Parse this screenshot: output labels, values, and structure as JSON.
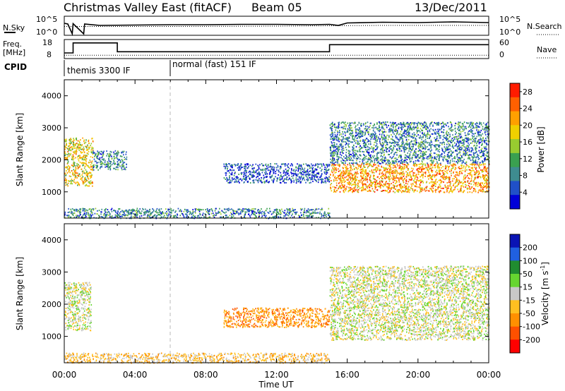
{
  "header": {
    "title": "Christmas Valley East (fitACF)",
    "beam": "Beam 05",
    "date": "13/Dec/2011"
  },
  "chart_data": [
    {
      "type": "line",
      "panel": "noise",
      "left_label": "N.Sky",
      "right_label": "N.Search",
      "left_ticks": [
        "10^5",
        "10^0"
      ],
      "right_ticks": [
        "10^5",
        "10^0"
      ],
      "x_unit": "hours UT",
      "series": [
        {
          "name": "N.Sky",
          "points": [
            [
              0,
              3.2
            ],
            [
              0.2,
              3.0
            ],
            [
              0.45,
              0.2
            ],
            [
              0.5,
              3.1
            ],
            [
              1.1,
              0.2
            ],
            [
              1.15,
              3.0
            ],
            [
              2,
              2.6
            ],
            [
              4,
              2.7
            ],
            [
              6,
              2.8
            ],
            [
              8,
              2.8
            ],
            [
              10,
              2.9
            ],
            [
              12,
              2.9
            ],
            [
              14,
              2.8
            ],
            [
              15,
              2.9
            ],
            [
              15.5,
              2.6
            ],
            [
              16,
              3.3
            ],
            [
              18,
              3.5
            ],
            [
              20,
              3.4
            ],
            [
              22,
              3.6
            ],
            [
              24,
              3.4
            ]
          ]
        },
        {
          "name": "N.Search",
          "points": [
            [
              0,
              2.3
            ],
            [
              6,
              2.3
            ],
            [
              12,
              2.4
            ],
            [
              18,
              2.6
            ],
            [
              24,
              2.6
            ]
          ]
        }
      ]
    },
    {
      "type": "line",
      "panel": "frequency",
      "left_label": "Freq. [MHz]",
      "right_label": "Nave",
      "left_ticks": [
        18,
        8
      ],
      "right_ticks": [
        60,
        0
      ],
      "series": [
        {
          "name": "Freq.",
          "points": [
            [
              0,
              10.8
            ],
            [
              0.5,
              10.8
            ],
            [
              0.5,
              16.5
            ],
            [
              1.5,
              16.5
            ],
            [
              3,
              16.5
            ],
            [
              3,
              11.5
            ],
            [
              15,
              11.5
            ],
            [
              15,
              15.5
            ],
            [
              24,
              15.5
            ]
          ]
        },
        {
          "name": "Nave",
          "points": [
            [
              0,
              9
            ],
            [
              24,
              9
            ]
          ]
        }
      ]
    },
    {
      "type": "table",
      "panel": "cpid",
      "label": "CPID",
      "segments": [
        {
          "start": 0,
          "end": 6,
          "text": "themis 3300 IF"
        },
        {
          "start": 6,
          "end": 24,
          "text": "normal (fast) 151 IF"
        }
      ]
    },
    {
      "type": "heatmap",
      "panel": "power",
      "ylabel": "Slant Range [km]",
      "ylim": [
        180,
        4500
      ],
      "yticks": [
        1000,
        2000,
        3000,
        4000
      ],
      "xlim": [
        0,
        24
      ],
      "colorbar_label": "Power [dB]",
      "colorbar_ticks": [
        4,
        8,
        12,
        16,
        20,
        24,
        28
      ],
      "colorbar_range": [
        0,
        30
      ],
      "colors": [
        "#0000d8",
        "#2050c8",
        "#3e8c90",
        "#3aa050",
        "#98cc30",
        "#f0d000",
        "#ffa000",
        "#ff6000",
        "#ff1c00"
      ],
      "features": [
        {
          "t0": 0,
          "t1": 1.6,
          "r0": 1200,
          "r1": 2700,
          "level": 22
        },
        {
          "t0": 1.6,
          "t1": 3.5,
          "r0": 1700,
          "r1": 2300,
          "level": 8
        },
        {
          "t0": 0,
          "t1": 15,
          "r0": 190,
          "r1": 500,
          "level": 10
        },
        {
          "t0": 9,
          "t1": 15,
          "r0": 1300,
          "r1": 1900,
          "level": 7
        },
        {
          "t0": 15,
          "t1": 24,
          "r0": 1000,
          "r1": 1900,
          "level": 25
        },
        {
          "t0": 15,
          "t1": 24,
          "r0": 1900,
          "r1": 3200,
          "level": 10
        }
      ]
    },
    {
      "type": "heatmap",
      "panel": "velocity",
      "ylabel": "Slant Range [km]",
      "ylim": [
        180,
        4500
      ],
      "yticks": [
        1000,
        2000,
        3000,
        4000
      ],
      "xlim": [
        0,
        24
      ],
      "xticks": [
        "00:00",
        "04:00",
        "08:00",
        "12:00",
        "16:00",
        "20:00",
        "00:00"
      ],
      "xlabel": "Time UT",
      "colorbar_label": "Velocity [m s^-1]",
      "colorbar_ticks": [
        200,
        100,
        50,
        15,
        -15,
        -50,
        -100,
        -200
      ],
      "colors": [
        "#0a14b4",
        "#2060e0",
        "#208c30",
        "#66d630",
        "#c8c8c8",
        "#ffc020",
        "#ff9000",
        "#ff5000",
        "#ff0000"
      ],
      "features": [
        {
          "t0": 0,
          "t1": 1.5,
          "r0": 1200,
          "r1": 2700,
          "velocity": 0
        },
        {
          "t0": 0,
          "t1": 15,
          "r0": 190,
          "r1": 500,
          "velocity": -40
        },
        {
          "t0": 9,
          "t1": 15,
          "r0": 1300,
          "r1": 1900,
          "velocity": -60
        },
        {
          "t0": 15,
          "t1": 24,
          "r0": 900,
          "r1": 1900,
          "velocity": 0
        },
        {
          "t0": 15,
          "t1": 24,
          "r0": 1900,
          "r1": 3200,
          "velocity": 0
        }
      ]
    }
  ]
}
